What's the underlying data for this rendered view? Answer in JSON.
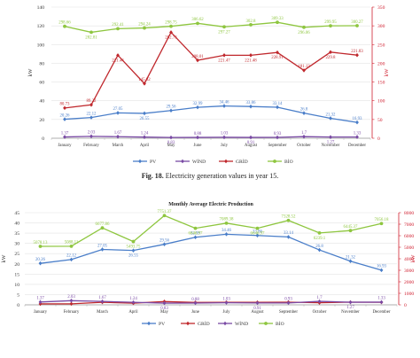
{
  "figure_caption": {
    "label": "Fig. 18.",
    "text": "Electricity generation values in year 15."
  },
  "colors": {
    "PV": "#4a7ec9",
    "WIND": "#7a4aa5",
    "GRID": "#c0282d",
    "BIO": "#8ec63f",
    "right_axis": "#d02030",
    "grid_line": "#e3e3e3"
  },
  "chart_data": [
    {
      "type": "line",
      "title": "",
      "ylabel": "kW",
      "ylabel_right": "kW",
      "categories": [
        "January",
        "February",
        "March",
        "April",
        "May",
        "June",
        "July",
        "August",
        "September",
        "October",
        "November",
        "December"
      ],
      "ylim": [
        0,
        140
      ],
      "yticks": [
        0,
        20,
        40,
        60,
        80,
        100,
        120,
        140
      ],
      "ylim_right": [
        0,
        350
      ],
      "yticks_right": [
        0,
        50,
        100,
        150,
        200,
        250,
        300,
        350
      ],
      "grid": true,
      "legend_position": "bottom",
      "legend_partially_hidden": true,
      "series": [
        {
          "name": "PV",
          "key": "PV",
          "axis": "left",
          "marker": "diamond",
          "values": [
            20.26,
            22.12,
            27.05,
            26.55,
            29.56,
            32.99,
            34.46,
            33.86,
            33.14,
            26.8,
            21.32,
            16.93
          ],
          "labels": [
            "20.26",
            "22.12",
            "27.05",
            "26.55",
            "29.56",
            "32.99",
            "34.46",
            "33.86",
            "33.14",
            "26.8",
            "21.32",
            "16.93"
          ]
        },
        {
          "name": "WİND",
          "key": "WIND",
          "axis": "left",
          "marker": "diamond",
          "values": [
            1.37,
            2.03,
            1.67,
            1.24,
            0.83,
            0.88,
            1.03,
            0.91,
            0.93,
            1.7,
            1.27,
            1.33
          ],
          "labels": [
            "1.37",
            "2.03",
            "1.67",
            "1.24",
            "0.83",
            "0.88",
            "1.03",
            "0.91",
            "0.93",
            "1.7",
            "1.27",
            "1.33"
          ]
        },
        {
          "name": "GRİD",
          "key": "GRID",
          "axis": "right",
          "marker": "diamond",
          "values": [
            80.73,
            89.22,
            221.44,
            145.82,
            282.73,
            208.01,
            221.47,
            221.48,
            228.91,
            181.12,
            229.8,
            221.83
          ],
          "labels": [
            "80.73",
            "89.22",
            "221.44",
            "145.82",
            "282.73",
            "208.01",
            "221.47",
            "221.48",
            "228.91",
            "181.12",
            "229.8",
            "221.83"
          ]
        },
        {
          "name": "BİO",
          "key": "BIO",
          "axis": "right",
          "marker": "circle",
          "values": [
            298.66,
            282.81,
            292.41,
            294.24,
            298.75,
            306.62,
            297.27,
            302.8,
            309.33,
            296.06,
            299.95,
            300.27
          ],
          "labels": [
            "298.66",
            "282.81",
            "292.41",
            "294.24",
            "298.75",
            "306.62",
            "297.27",
            "302.8",
            "309.33",
            "296.06",
            "299.95",
            "300.27"
          ]
        }
      ]
    },
    {
      "type": "line",
      "title": "Monthly Average Electric Production",
      "ylabel": "kW",
      "ylabel_right": "kW",
      "categories": [
        "January",
        "February",
        "March",
        "April",
        "May",
        "June",
        "July",
        "August",
        "September",
        "October",
        "November",
        "December"
      ],
      "ylim": [
        0,
        45
      ],
      "yticks": [
        0,
        5,
        10,
        15,
        20,
        25,
        30,
        35,
        40,
        45
      ],
      "ylim_right": [
        0,
        8000
      ],
      "yticks_right": [
        0,
        1000,
        2000,
        3000,
        4000,
        5000,
        6000,
        7000,
        8000
      ],
      "grid": true,
      "legend_position": "bottom",
      "series": [
        {
          "name": "PV",
          "key": "PV",
          "axis": "left",
          "marker": "diamond",
          "values": [
            20.26,
            22.12,
            27.05,
            26.55,
            29.56,
            32.99,
            34.46,
            33.86,
            33.14,
            26.8,
            21.32,
            16.93
          ],
          "labels": [
            "20.26",
            "22.12",
            "27.05",
            "26.55",
            "29.56",
            "32.99",
            "34.46",
            "33.86",
            "33.14",
            "26.8",
            "21.32",
            "16.93"
          ]
        },
        {
          "name": "GRİD",
          "key": "GRID",
          "axis": "right",
          "marker": "diamond",
          "values": [
            80.73,
            89.22,
            221.44,
            145.82,
            282.73,
            208.01,
            221.47,
            221.48,
            228.91,
            181.12,
            229.8,
            221.83
          ],
          "labels": null
        },
        {
          "name": "WİND",
          "key": "WIND",
          "axis": "left",
          "marker": "diamond",
          "values": [
            1.37,
            2.03,
            1.67,
            1.24,
            0.83,
            0.88,
            1.03,
            0.91,
            0.93,
            1.7,
            1.27,
            1.33
          ],
          "labels": [
            "1.37",
            "2.03",
            "1.67",
            "1.24",
            "0.83",
            "0.88",
            "1.03",
            "0.91",
            "0.93",
            "1.7",
            "1.27",
            "1.33"
          ]
        },
        {
          "name": "BİO",
          "key": "BIO",
          "axis": "right",
          "marker": "circle",
          "values": [
            5078.13,
            5088.11,
            6677.86,
            5493.75,
            7751.37,
            6646.97,
            7089.38,
            6646.97,
            7328.52,
            6239.1,
            6445.37,
            7056.18
          ],
          "labels": [
            "5078.13",
            "5088.11",
            "6677.86",
            "5493.75",
            "7751.37",
            "6646.97",
            "7089.38",
            "6646.97",
            "7328.52",
            "6239.1",
            "6445.37",
            "7056.18"
          ]
        }
      ]
    }
  ]
}
